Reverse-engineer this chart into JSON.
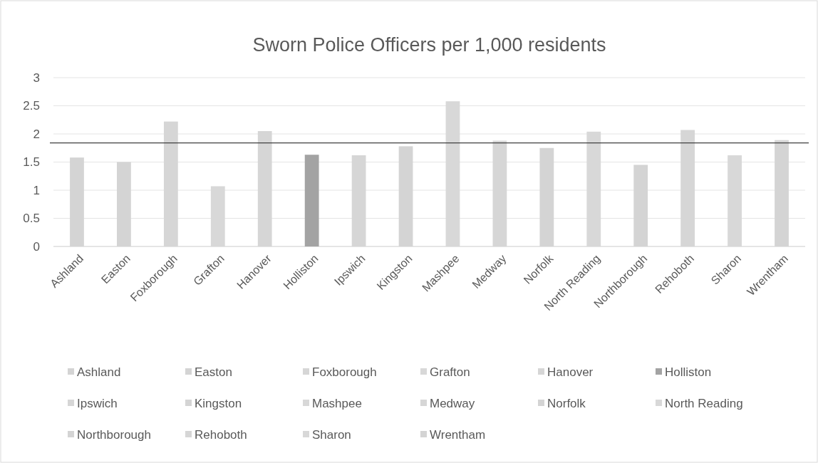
{
  "chart_data": {
    "type": "bar",
    "title": "Sworn Police Officers per 1,000 residents",
    "categories": [
      "Ashland",
      "Easton",
      "Foxborough",
      "Grafton",
      "Hanover",
      "Holliston",
      "Ipswich",
      "Kingston",
      "Mashpee",
      "Medway",
      "Norfolk",
      "North Reading",
      "Northborough",
      "Rehoboth",
      "Sharon",
      "Wrentham"
    ],
    "stacked": true,
    "series": [
      {
        "name": "Ashland",
        "color": "#d4d4d4",
        "values": [
          1.58,
          null,
          null,
          null,
          null,
          null,
          null,
          null,
          null,
          null,
          null,
          null,
          null,
          null,
          null,
          null
        ]
      },
      {
        "name": "Easton",
        "color": "#d4d4d4",
        "values": [
          null,
          1.5,
          null,
          null,
          null,
          null,
          null,
          null,
          null,
          null,
          null,
          null,
          null,
          null,
          null,
          null
        ]
      },
      {
        "name": "Foxborough",
        "color": "#d6d6d6",
        "values": [
          null,
          null,
          2.22,
          null,
          null,
          null,
          null,
          null,
          null,
          null,
          null,
          null,
          null,
          null,
          null,
          null
        ]
      },
      {
        "name": "Grafton",
        "color": "#d8d8d8",
        "values": [
          null,
          null,
          null,
          1.07,
          null,
          null,
          null,
          null,
          null,
          null,
          null,
          null,
          null,
          null,
          null,
          null
        ]
      },
      {
        "name": "Hanover",
        "color": "#d6d6d6",
        "values": [
          null,
          null,
          null,
          null,
          2.05,
          null,
          null,
          null,
          null,
          null,
          null,
          null,
          null,
          null,
          null,
          null
        ]
      },
      {
        "name": "Holliston",
        "color": "#a3a3a3",
        "values": [
          null,
          null,
          null,
          null,
          null,
          1.63,
          null,
          null,
          null,
          null,
          null,
          null,
          null,
          null,
          null,
          null
        ]
      },
      {
        "name": "Ipswich",
        "color": "#d6d6d6",
        "values": [
          null,
          null,
          null,
          null,
          null,
          null,
          1.62,
          null,
          null,
          null,
          null,
          null,
          null,
          null,
          null,
          null
        ]
      },
      {
        "name": "Kingston",
        "color": "#d4d4d4",
        "values": [
          null,
          null,
          null,
          null,
          null,
          null,
          null,
          1.78,
          null,
          null,
          null,
          null,
          null,
          null,
          null,
          null
        ]
      },
      {
        "name": "Mashpee",
        "color": "#d8d8d8",
        "values": [
          null,
          null,
          null,
          null,
          null,
          null,
          null,
          null,
          2.58,
          null,
          null,
          null,
          null,
          null,
          null,
          null
        ]
      },
      {
        "name": "Medway",
        "color": "#d6d6d6",
        "values": [
          null,
          null,
          null,
          null,
          null,
          null,
          null,
          null,
          null,
          1.88,
          null,
          null,
          null,
          null,
          null,
          null
        ]
      },
      {
        "name": "Norfolk",
        "color": "#d4d4d4",
        "values": [
          null,
          null,
          null,
          null,
          null,
          null,
          null,
          null,
          null,
          null,
          1.75,
          null,
          null,
          null,
          null,
          null
        ]
      },
      {
        "name": "North Reading",
        "color": "#d8d8d8",
        "values": [
          null,
          null,
          null,
          null,
          null,
          null,
          null,
          null,
          null,
          null,
          null,
          2.04,
          null,
          null,
          null,
          null
        ]
      },
      {
        "name": "Northborough",
        "color": "#d4d4d4",
        "values": [
          null,
          null,
          null,
          null,
          null,
          null,
          null,
          null,
          null,
          null,
          null,
          null,
          1.45,
          null,
          null,
          null
        ]
      },
      {
        "name": "Rehoboth",
        "color": "#d6d6d6",
        "values": [
          null,
          null,
          null,
          null,
          null,
          null,
          null,
          null,
          null,
          null,
          null,
          null,
          null,
          2.07,
          null,
          null
        ]
      },
      {
        "name": "Sharon",
        "color": "#d8d8d8",
        "values": [
          null,
          null,
          null,
          null,
          null,
          null,
          null,
          null,
          null,
          null,
          null,
          null,
          null,
          null,
          1.62,
          null
        ]
      },
      {
        "name": "Wrentham",
        "color": "#d4d4d4",
        "values": [
          null,
          null,
          null,
          null,
          null,
          null,
          null,
          null,
          null,
          null,
          null,
          null,
          null,
          null,
          null,
          1.89
        ]
      }
    ],
    "ylim": [
      0,
      3
    ],
    "yticks": [
      0,
      0.5,
      1,
      1.5,
      2,
      2.5,
      3
    ],
    "grid": "y",
    "legend": "bottom",
    "ref_lines": [
      {
        "axis": "y",
        "value": 1.84,
        "color": "#404040"
      }
    ]
  }
}
